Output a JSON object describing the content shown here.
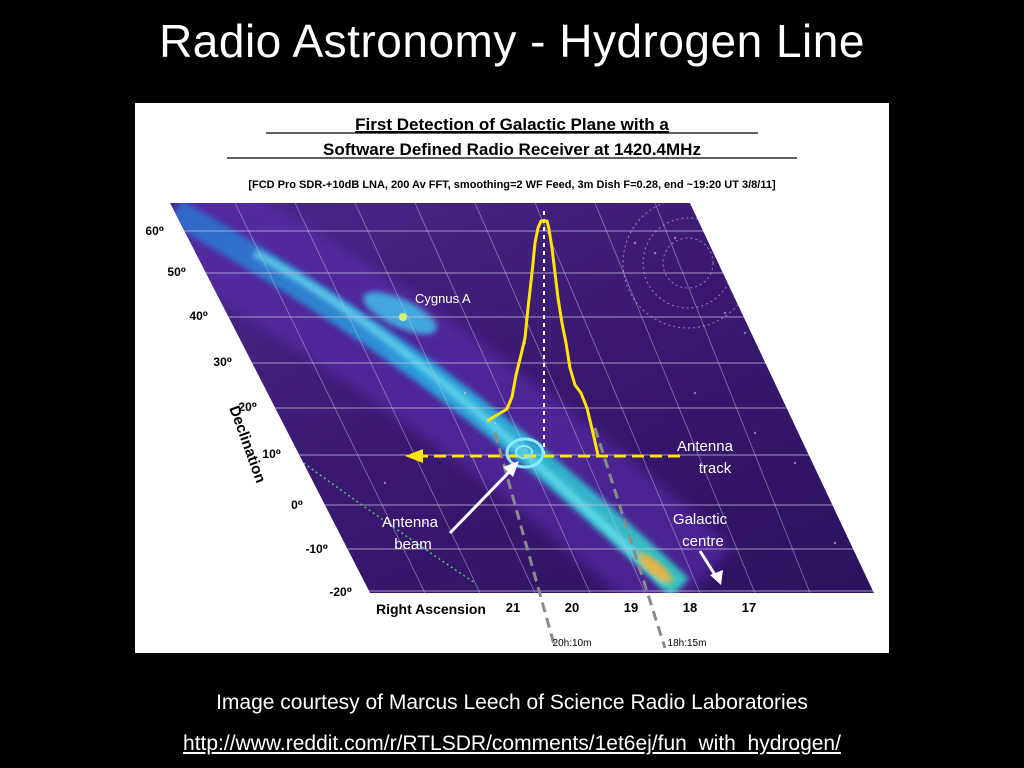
{
  "slide": {
    "title": "Radio Astronomy - Hydrogen Line",
    "caption": "Image courtesy of Marcus Leech of Science Radio Laboratories",
    "link": "http://www.reddit.com/r/RTLSDR/comments/1et6ej/fun_with_hydrogen/"
  },
  "figure": {
    "title_line1": "First Detection of Galactic Plane with a",
    "title_line2": "Software Defined Radio Receiver at 1420.4MHz",
    "subtitle": "[FCD Pro SDR-+10dB LNA, 200 Av FFT, smoothing=2 WF Feed, 3m  Dish F=0.28, end ~19:20 UT 3/8/11]",
    "y_axis_label": "Declination",
    "x_axis_label": "Right Ascension",
    "dec_ticks": [
      "60⁰",
      "50⁰",
      "40⁰",
      "30⁰",
      "20⁰",
      "10⁰",
      "0⁰",
      "-10⁰",
      "-20⁰"
    ],
    "ra_ticks": [
      "21",
      "20",
      "19",
      "18",
      "17"
    ],
    "annotations": {
      "cygnus": "Cygnus A",
      "antenna_track_1": "Antenna",
      "antenna_track_2": "track",
      "antenna_beam_1": "Antenna",
      "antenna_beam_2": "beam",
      "galactic_centre_1": "Galactic",
      "galactic_centre_2": "centre",
      "time_left": "20h:10m",
      "time_right": "18h:15m"
    },
    "colors": {
      "sky": "#3a1a78",
      "galactic_band": "#2a9be0",
      "profile": "#ffe600",
      "beam": "#8ee8ff"
    }
  }
}
